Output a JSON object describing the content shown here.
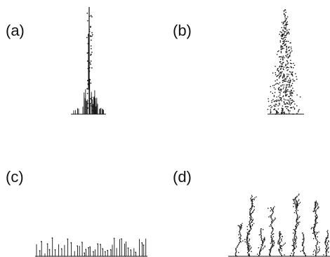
{
  "panels": [
    {
      "id": "a",
      "label": "(a)"
    },
    {
      "id": "b",
      "label": "(b)"
    },
    {
      "id": "c",
      "label": "(c)"
    },
    {
      "id": "d",
      "label": "(d)"
    }
  ],
  "colors": {
    "ink": "#111111",
    "background": "#ffffff"
  }
}
